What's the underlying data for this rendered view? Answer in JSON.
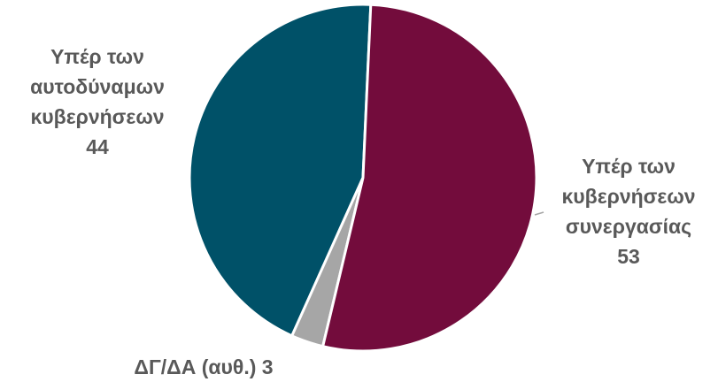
{
  "chart_data": {
    "type": "pie",
    "title": "",
    "slices": [
      {
        "label": "Υπέρ των αυτοδύναμων κυβερνήσεων",
        "value": 44,
        "color": "#005168"
      },
      {
        "label": "Υπέρ των κυβερνήσεων συνεργασίας",
        "value": 53,
        "color": "#730C3C"
      },
      {
        "label": "ΔΓ/ΔΑ (αυθ.)",
        "value": 3,
        "color": "#A6A6A6"
      }
    ],
    "legend": "none",
    "data_labels": [
      {
        "lines": [
          "Υπέρ των",
          "αυτοδύναμων",
          "κυβερνήσεων"
        ],
        "value": "44"
      },
      {
        "lines": [
          "Υπέρ των",
          "κυβερνήσεων",
          "συνεργασίας"
        ],
        "value": "53"
      },
      {
        "text": "ΔΓ/ΔΑ (αυθ.) 3"
      }
    ]
  }
}
